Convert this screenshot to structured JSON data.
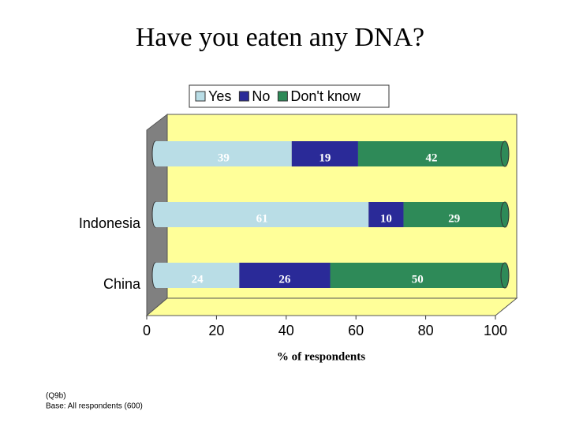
{
  "chart_data": {
    "type": "stacked-bar-horizontal",
    "title": "Have you eaten any DNA?",
    "categories": [
      null,
      "Indonesia",
      "China"
    ],
    "series": [
      {
        "name": "Yes",
        "color": "#b9dde6",
        "values": [
          39,
          61,
          24
        ]
      },
      {
        "name": "No",
        "color": "#2a2a98",
        "values": [
          19,
          10,
          26
        ]
      },
      {
        "name": "Don't know",
        "color": "#2e8a58",
        "values": [
          42,
          29,
          50
        ]
      }
    ],
    "xlim": [
      0,
      100
    ],
    "xticks": [
      0,
      20,
      40,
      60,
      80,
      100
    ],
    "xlabel": "% of respondents",
    "legend": "top",
    "footnote": [
      "(Q9b)",
      "Base: All respondents (600)"
    ]
  }
}
